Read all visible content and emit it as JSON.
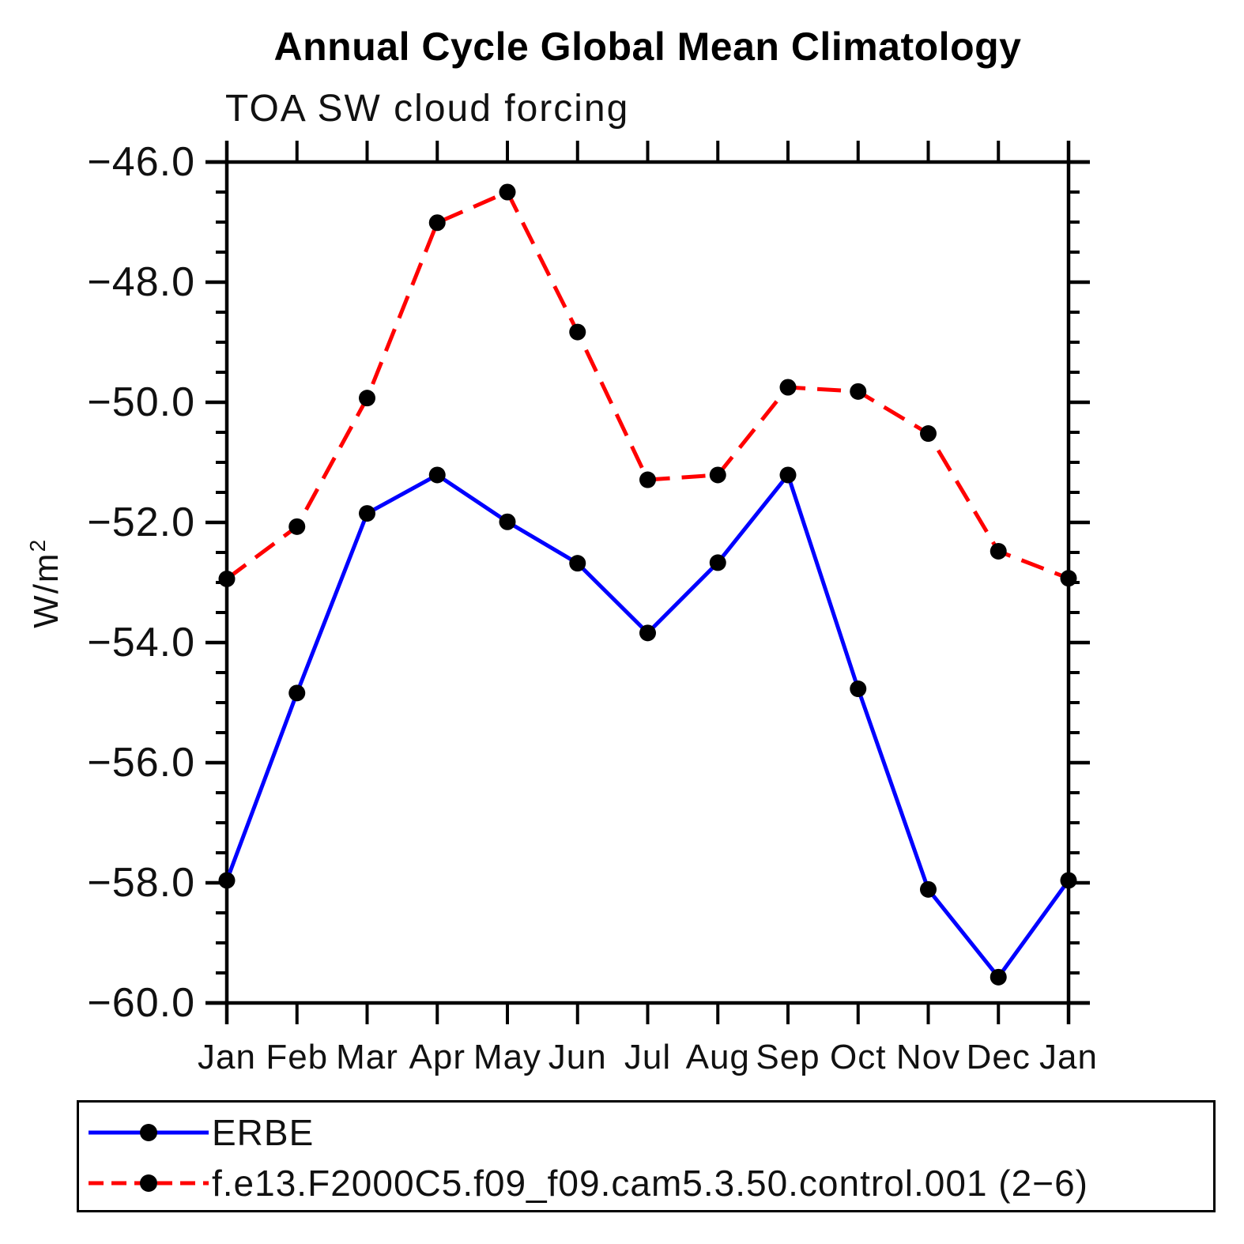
{
  "figure": {
    "title": "Annual Cycle Global Mean Climatology",
    "subtitle": "TOA SW cloud forcing",
    "ylabel_base": "W/m",
    "ylabel_exp": "2"
  },
  "chart_data": {
    "type": "line",
    "title": "Annual Cycle Global Mean Climatology",
    "subtitle": "TOA SW cloud forcing",
    "ylabel": "W/m2",
    "xlabel": "",
    "categories": [
      "Jan",
      "Feb",
      "Mar",
      "Apr",
      "May",
      "Jun",
      "Jul",
      "Aug",
      "Sep",
      "Oct",
      "Nov",
      "Dec",
      "Jan"
    ],
    "ylim": [
      -60.0,
      -46.0
    ],
    "ytick_values": [
      -46.0,
      -48.0,
      -50.0,
      -52.0,
      -54.0,
      -56.0,
      -58.0,
      -60.0
    ],
    "ytick_labels": [
      "−46.0",
      "−48.0",
      "−50.0",
      "−52.0",
      "−54.0",
      "−56.0",
      "−58.0",
      "−60.0"
    ],
    "ytick_minor_step": 0.5,
    "grid": false,
    "legend_position": "bottom",
    "axis_color": "#000000",
    "series": [
      {
        "name": "ERBE",
        "color": "#0000FF",
        "line_style": "solid",
        "marker": "filled-circle",
        "marker_color": "#000000",
        "values": [
          -57.96,
          -54.84,
          -51.85,
          -51.21,
          -51.99,
          -52.68,
          -53.84,
          -52.67,
          -51.21,
          -54.77,
          -58.11,
          -59.57,
          -57.96
        ]
      },
      {
        "name": "f.e13.F2000C5.f09_f09.cam5.3.50.control.001 (2−6)",
        "color": "#FF0000",
        "line_style": "dashed",
        "marker": "filled-circle",
        "marker_color": "#000000",
        "values": [
          -52.94,
          -52.07,
          -49.93,
          -47.01,
          -46.5,
          -48.83,
          -51.29,
          -51.21,
          -49.75,
          -49.82,
          -50.52,
          -52.48,
          -52.93
        ]
      }
    ]
  }
}
